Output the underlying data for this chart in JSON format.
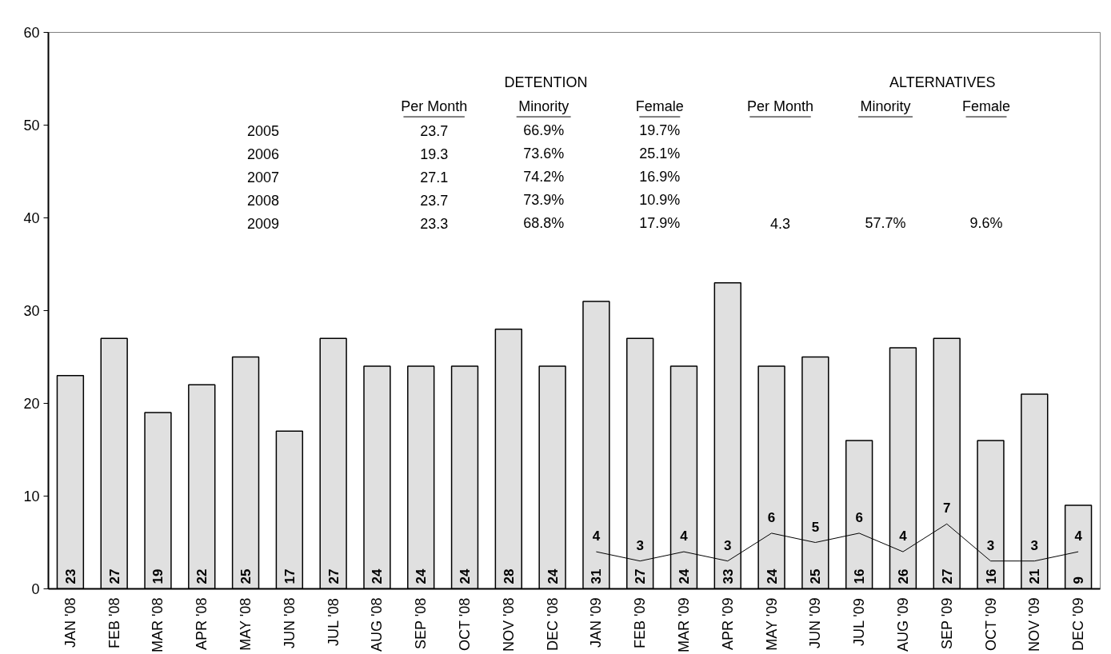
{
  "chart_data": {
    "type": "bar",
    "categories": [
      "JAN '08",
      "FEB '08",
      "MAR '08",
      "APR '08",
      "MAY '08",
      "JUN '08",
      "JUL '08",
      "AUG '08",
      "SEP '08",
      "OCT '08",
      "NOV '08",
      "DEC '08",
      "JAN '09",
      "FEB '09",
      "MAR '09",
      "APR '09",
      "MAY '09",
      "JUN '09",
      "JUL '09",
      "AUG '09",
      "SEP '09",
      "OCT '09",
      "NOV '09",
      "DEC '09"
    ],
    "series": [
      {
        "color": "#e0e0e0",
        "values": [
          23,
          27,
          19,
          22,
          25,
          17,
          27,
          24,
          24,
          24,
          28,
          24,
          31,
          27,
          24,
          33,
          24,
          25,
          16,
          26,
          27,
          16,
          21,
          9
        ]
      },
      {
        "type": "line",
        "color": "#000000",
        "values": [
          null,
          null,
          null,
          null,
          null,
          null,
          null,
          null,
          null,
          null,
          null,
          null,
          4,
          3,
          4,
          3,
          6,
          5,
          6,
          4,
          7,
          3,
          3,
          4
        ]
      }
    ],
    "ylim": [
      0,
      60
    ],
    "yticks": [
      0,
      10,
      20,
      30,
      40,
      50,
      60
    ],
    "grid": false,
    "marker": "none",
    "line_style": "solid",
    "data_labels": true,
    "annotations": [
      "DETENTION",
      "ALTERNATIVES",
      "Per Month",
      "Minority",
      "Female",
      "Per Month",
      "Minority",
      "Female",
      "2005",
      "23.7",
      "66.9%",
      "19.7%",
      "2006",
      "19.3",
      "73.6%",
      "25.1%",
      "2007",
      "27.1",
      "74.2%",
      "16.9%",
      "2008",
      "23.7",
      "73.9%",
      "10.9%",
      "2009",
      "23.3",
      "68.8%",
      "17.9%",
      "4.3",
      "57.7%",
      "9.6%"
    ]
  }
}
